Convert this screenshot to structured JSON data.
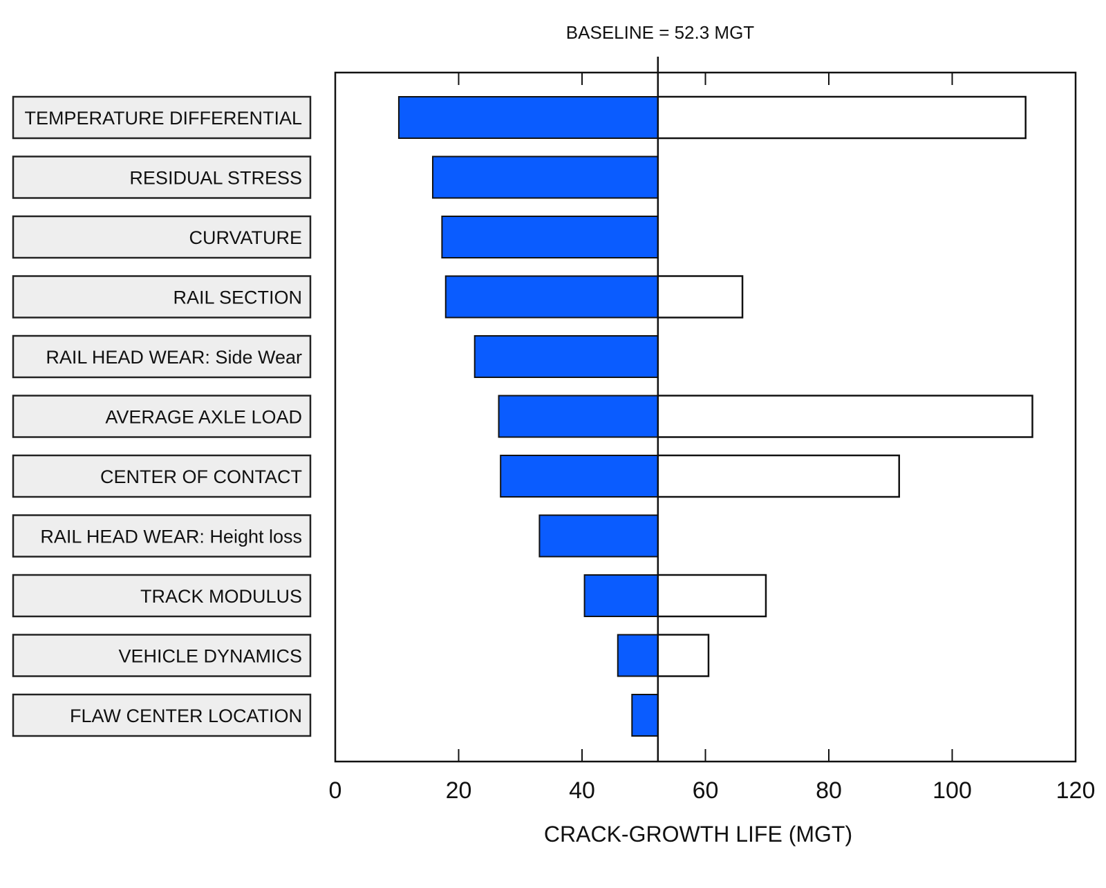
{
  "chart_data": {
    "type": "tornado",
    "title": "BASELINE = 52.3 MGT",
    "baseline": 52.3,
    "xlabel": "CRACK-GROWTH LIFE (MGT)",
    "xlim": [
      0,
      120
    ],
    "xticks": [
      0,
      20,
      40,
      60,
      80,
      100,
      120
    ],
    "colors": {
      "low": "#0a5cff",
      "high": "#ffffff"
    },
    "factors": [
      {
        "label": "TEMPERATURE DIFFERENTIAL",
        "low": 10.3,
        "high": 111.9
      },
      {
        "label": "RESIDUAL STRESS",
        "low": 15.8,
        "high": 52.3
      },
      {
        "label": "CURVATURE",
        "low": 17.3,
        "high": 52.3
      },
      {
        "label": "RAIL SECTION",
        "low": 17.9,
        "high": 66.0
      },
      {
        "label": "RAIL HEAD WEAR: Side Wear",
        "low": 22.6,
        "high": 52.3
      },
      {
        "label": "AVERAGE AXLE LOAD",
        "low": 26.5,
        "high": 113.0
      },
      {
        "label": "CENTER OF CONTACT",
        "low": 26.8,
        "high": 91.4
      },
      {
        "label": "RAIL HEAD WEAR: Height loss",
        "low": 33.1,
        "high": 52.3
      },
      {
        "label": "TRACK MODULUS",
        "low": 40.4,
        "high": 69.8
      },
      {
        "label": "VEHICLE DYNAMICS",
        "low": 45.8,
        "high": 60.5
      },
      {
        "label": "FLAW CENTER LOCATION",
        "low": 48.1,
        "high": 52.3
      }
    ]
  }
}
